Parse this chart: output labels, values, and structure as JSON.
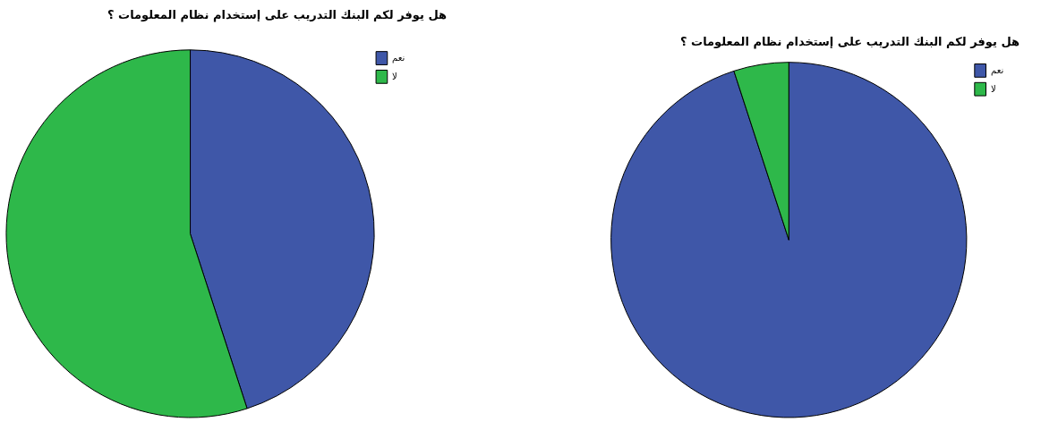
{
  "chart_data": [
    {
      "type": "pie",
      "title": "هل يوفر لكم البنك التدريب على إستخدام نظام المعلومات ؟",
      "categories": [
        "نعم",
        "لا"
      ],
      "values": [
        45,
        55
      ],
      "colors": [
        "#3f57a8",
        "#2eb84a"
      ],
      "legend": "top right"
    },
    {
      "type": "pie",
      "title": "هل يوفر لكم البنك التدريب على إستخدام نظام المعلومات ؟",
      "categories": [
        "نعم",
        "لا"
      ],
      "values": [
        95,
        5
      ],
      "colors": [
        "#3f57a8",
        "#2eb84a"
      ],
      "legend": "top right"
    }
  ]
}
